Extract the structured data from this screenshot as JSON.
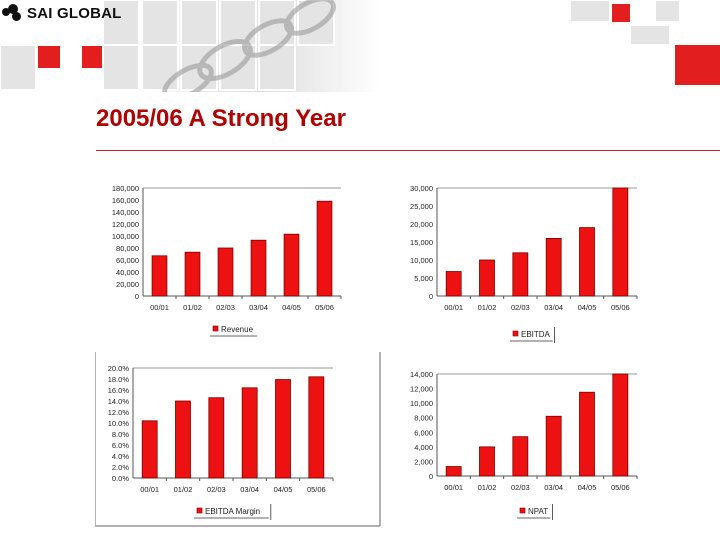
{
  "header": {
    "logo_text": "SAI GLOBAL",
    "title": "2005/06 A Strong Year"
  },
  "colors": {
    "accent": "#cc0000",
    "bar": "#ee1111",
    "title": "#b00000"
  },
  "chart_data": [
    {
      "type": "bar",
      "categories": [
        "00/01",
        "01/02",
        "02/03",
        "03/04",
        "04/05",
        "05/06"
      ],
      "series": [
        {
          "name": "Revenue",
          "values": [
            67000,
            73000,
            80000,
            93000,
            103000,
            158000
          ]
        }
      ],
      "yticks": [
        "180,000",
        "160,000",
        "140,000",
        "120,000",
        "100,000",
        "80,000",
        "60,000",
        "40,000",
        "20,000",
        "0"
      ],
      "ylim": [
        0,
        180000
      ],
      "legend": "bottom"
    },
    {
      "type": "bar",
      "categories": [
        "00/01",
        "01/02",
        "02/03",
        "03/04",
        "04/05",
        "05/06"
      ],
      "series": [
        {
          "name": "EBITDA",
          "values": [
            6800,
            10000,
            12000,
            16000,
            19000,
            30000
          ]
        }
      ],
      "yticks": [
        "30,000",
        "25,000",
        "20,000",
        "15,000",
        "10,000",
        "5,000",
        "0"
      ],
      "ylim": [
        0,
        30000
      ],
      "legend": "bottom"
    },
    {
      "type": "bar",
      "categories": [
        "00/01",
        "01/02",
        "02/03",
        "03/04",
        "04/05",
        "05/06"
      ],
      "series": [
        {
          "name": "EBITDA Margin",
          "values": [
            10.4,
            14.0,
            14.6,
            16.4,
            17.9,
            18.4
          ]
        }
      ],
      "yticks": [
        "20.0%",
        "18.0%",
        "16.0%",
        "14.0%",
        "12.0%",
        "10.0%",
        "8.0%",
        "6.0%",
        "4.0%",
        "2.0%",
        "0.0%"
      ],
      "ylim": [
        0,
        20
      ],
      "legend": "bottom"
    },
    {
      "type": "bar",
      "categories": [
        "00/01",
        "01/02",
        "02/03",
        "03/04",
        "04/05",
        "05/06"
      ],
      "series": [
        {
          "name": "NPAT",
          "values": [
            1300,
            4000,
            5400,
            8200,
            11500,
            14000
          ]
        }
      ],
      "yticks": [
        "14,000",
        "12,000",
        "10,000",
        "8,000",
        "6,000",
        "4,000",
        "2,000",
        "0"
      ],
      "ylim": [
        0,
        14000
      ],
      "legend": "bottom"
    }
  ]
}
